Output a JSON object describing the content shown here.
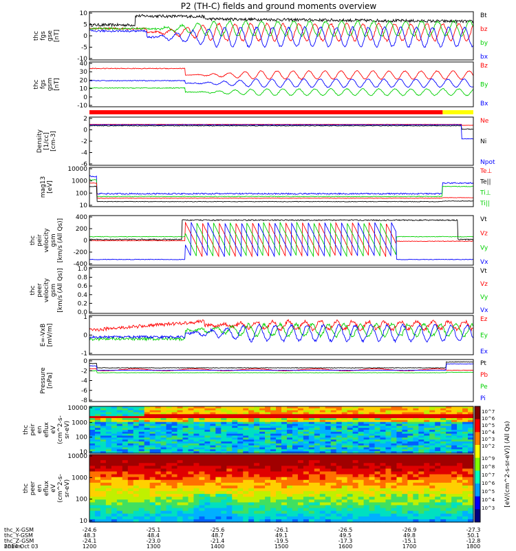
{
  "title": "P2 (TH-C) fields and ground moments overview",
  "colors": {
    "black": "#000000",
    "red": "#ff0000",
    "green": "#00d000",
    "blue": "#0000ff",
    "yellow": "#ffff00",
    "axis": "#000000"
  },
  "chart_data": [
    {
      "id": "p1",
      "type": "line",
      "ylabel": [
        "thc",
        "fgs",
        "gse",
        "[nT]"
      ],
      "ylim": [
        -10,
        10
      ],
      "ticks": [
        10,
        5,
        0,
        -5,
        -10
      ],
      "log": false,
      "legend": [
        {
          "name": "Bt",
          "color": "black"
        },
        {
          "name": "bz",
          "color": "red"
        },
        {
          "name": "by",
          "color": "green"
        },
        {
          "name": "bx",
          "color": "blue"
        }
      ]
    },
    {
      "id": "p2",
      "type": "line",
      "ylabel": [
        "thc",
        "fgs",
        "gsm",
        "[nT]"
      ],
      "ylim": [
        -15,
        40
      ],
      "ticks": [
        40,
        30,
        20,
        10,
        0,
        -10
      ],
      "log": false,
      "legend": [
        {
          "name": "Bz",
          "color": "red"
        },
        {
          "name": "By",
          "color": "green"
        },
        {
          "name": "Bx",
          "color": "blue"
        }
      ]
    },
    {
      "id": "p3",
      "type": "line",
      "ylabel": [
        "Density",
        "[1/cc]",
        "[cm-3]"
      ],
      "ylim": [
        -7,
        3
      ],
      "ticks": [
        2,
        0,
        -2,
        -4,
        -6
      ],
      "log": true,
      "legend": [
        {
          "name": "Ne",
          "color": "red"
        },
        {
          "name": "Ni",
          "color": "black"
        },
        {
          "name": "Npot",
          "color": "blue"
        }
      ]
    },
    {
      "id": "p4",
      "type": "line",
      "ylabel": [
        "mag13",
        "[eV]"
      ],
      "ylim": [
        0.7,
        4.2
      ],
      "ticks": [
        10000,
        1000,
        100,
        10
      ],
      "log": true,
      "legend": [
        {
          "name": "Te⊥",
          "color": "red"
        },
        {
          "name": "Te||",
          "color": "black"
        },
        {
          "name": "Ti⊥",
          "color": "green"
        },
        {
          "name": "Ti||",
          "color": "green"
        }
      ]
    },
    {
      "id": "p5",
      "type": "line",
      "ylabel": [
        "thc",
        "peir",
        "velocity",
        "gsm",
        "[km/s (All Qs)]"
      ],
      "ylim": [
        -450,
        420
      ],
      "ticks": [
        400,
        200,
        0,
        -200,
        -400
      ],
      "log": false,
      "legend": [
        {
          "name": "Vt",
          "color": "black"
        },
        {
          "name": "Vz",
          "color": "red"
        },
        {
          "name": "Vy",
          "color": "green"
        },
        {
          "name": "Vx",
          "color": "blue"
        }
      ]
    },
    {
      "id": "p6",
      "type": "line",
      "ylabel": [
        "thc",
        "peer",
        "velocity",
        "gsm",
        "[km/s (All Qs)]"
      ],
      "ylim": [
        0,
        1
      ],
      "ticks": [
        "1.0",
        "0.8",
        "0.6",
        "0.4",
        "0.2",
        "0.0"
      ],
      "log": false,
      "legend": [
        {
          "name": "Vt",
          "color": "black"
        },
        {
          "name": "Vz",
          "color": "red"
        },
        {
          "name": "Vy",
          "color": "green"
        },
        {
          "name": "Vx",
          "color": "blue"
        }
      ]
    },
    {
      "id": "p7",
      "type": "line",
      "ylabel": [
        "E=-VxB",
        "[mV/m]"
      ],
      "ylim": [
        -2,
        2
      ],
      "ticks": [
        1,
        0,
        -1
      ],
      "log": false,
      "legend": [
        {
          "name": "Ez",
          "color": "red"
        },
        {
          "name": "Ey",
          "color": "green"
        },
        {
          "name": "Ex",
          "color": "blue"
        }
      ]
    },
    {
      "id": "p8",
      "type": "line",
      "ylabel": [
        "Pressure",
        "[nPa]"
      ],
      "ylim": [
        -8.3,
        0.3
      ],
      "ticks": [
        0,
        -2,
        -4,
        -6,
        -8
      ],
      "log": true,
      "legend": [
        {
          "name": "Pt",
          "color": "black"
        },
        {
          "name": "Pb",
          "color": "red"
        },
        {
          "name": "Pe",
          "color": "green"
        },
        {
          "name": "Pi",
          "color": "blue"
        }
      ]
    },
    {
      "id": "p9",
      "type": "heatmap",
      "ylabel": [
        "thc",
        "peir",
        "en",
        "eflux",
        "eV",
        "(cm^2-s-",
        "sr-eV)"
      ],
      "ylim": [
        5,
        15000
      ],
      "ticks": [
        10000,
        1000,
        100,
        10
      ],
      "log": true
    },
    {
      "id": "p10",
      "type": "heatmap",
      "ylabel": [
        "thc",
        "peer",
        "en",
        "eflux",
        "eV",
        "(cm^2-s-",
        "sr-eV)"
      ],
      "ylim": [
        5,
        15000
      ],
      "ticks": [
        10000,
        1000,
        100,
        10
      ],
      "log": true
    }
  ],
  "colorbar": {
    "label": "[eV/(cm^2-s-sr-eV)] (All Qs)",
    "labels": [
      "10^7",
      "10^6",
      "10^5",
      "10^4",
      "10^3",
      "10^2"
    ],
    "labels2": [
      "10^9",
      "10^8",
      "10^7",
      "10^6",
      "10^5",
      "10^4",
      "10^3"
    ]
  },
  "xaxis": {
    "rows": [
      {
        "label": "thc_X-GSM",
        "values": [
          "-24.6",
          "-25.1",
          "-25.6",
          "-26.1",
          "-26.5",
          "-26.9",
          "-27.3"
        ]
      },
      {
        "label": "thc_Y-GSM",
        "values": [
          "48.3",
          "48.4",
          "48.7",
          "49.1",
          "49.5",
          "49.8",
          "50.1"
        ]
      },
      {
        "label": "thc_Z-GSM",
        "values": [
          "-24.1",
          "-23.0",
          "-21.4",
          "-19.5",
          "-17.3",
          "-15.1",
          "-12.8"
        ]
      },
      {
        "label": "hhmm",
        "values": [
          "1200",
          "1300",
          "1400",
          "1500",
          "1600",
          "1700",
          "1800"
        ]
      }
    ],
    "date": "2014 Oct 03"
  }
}
